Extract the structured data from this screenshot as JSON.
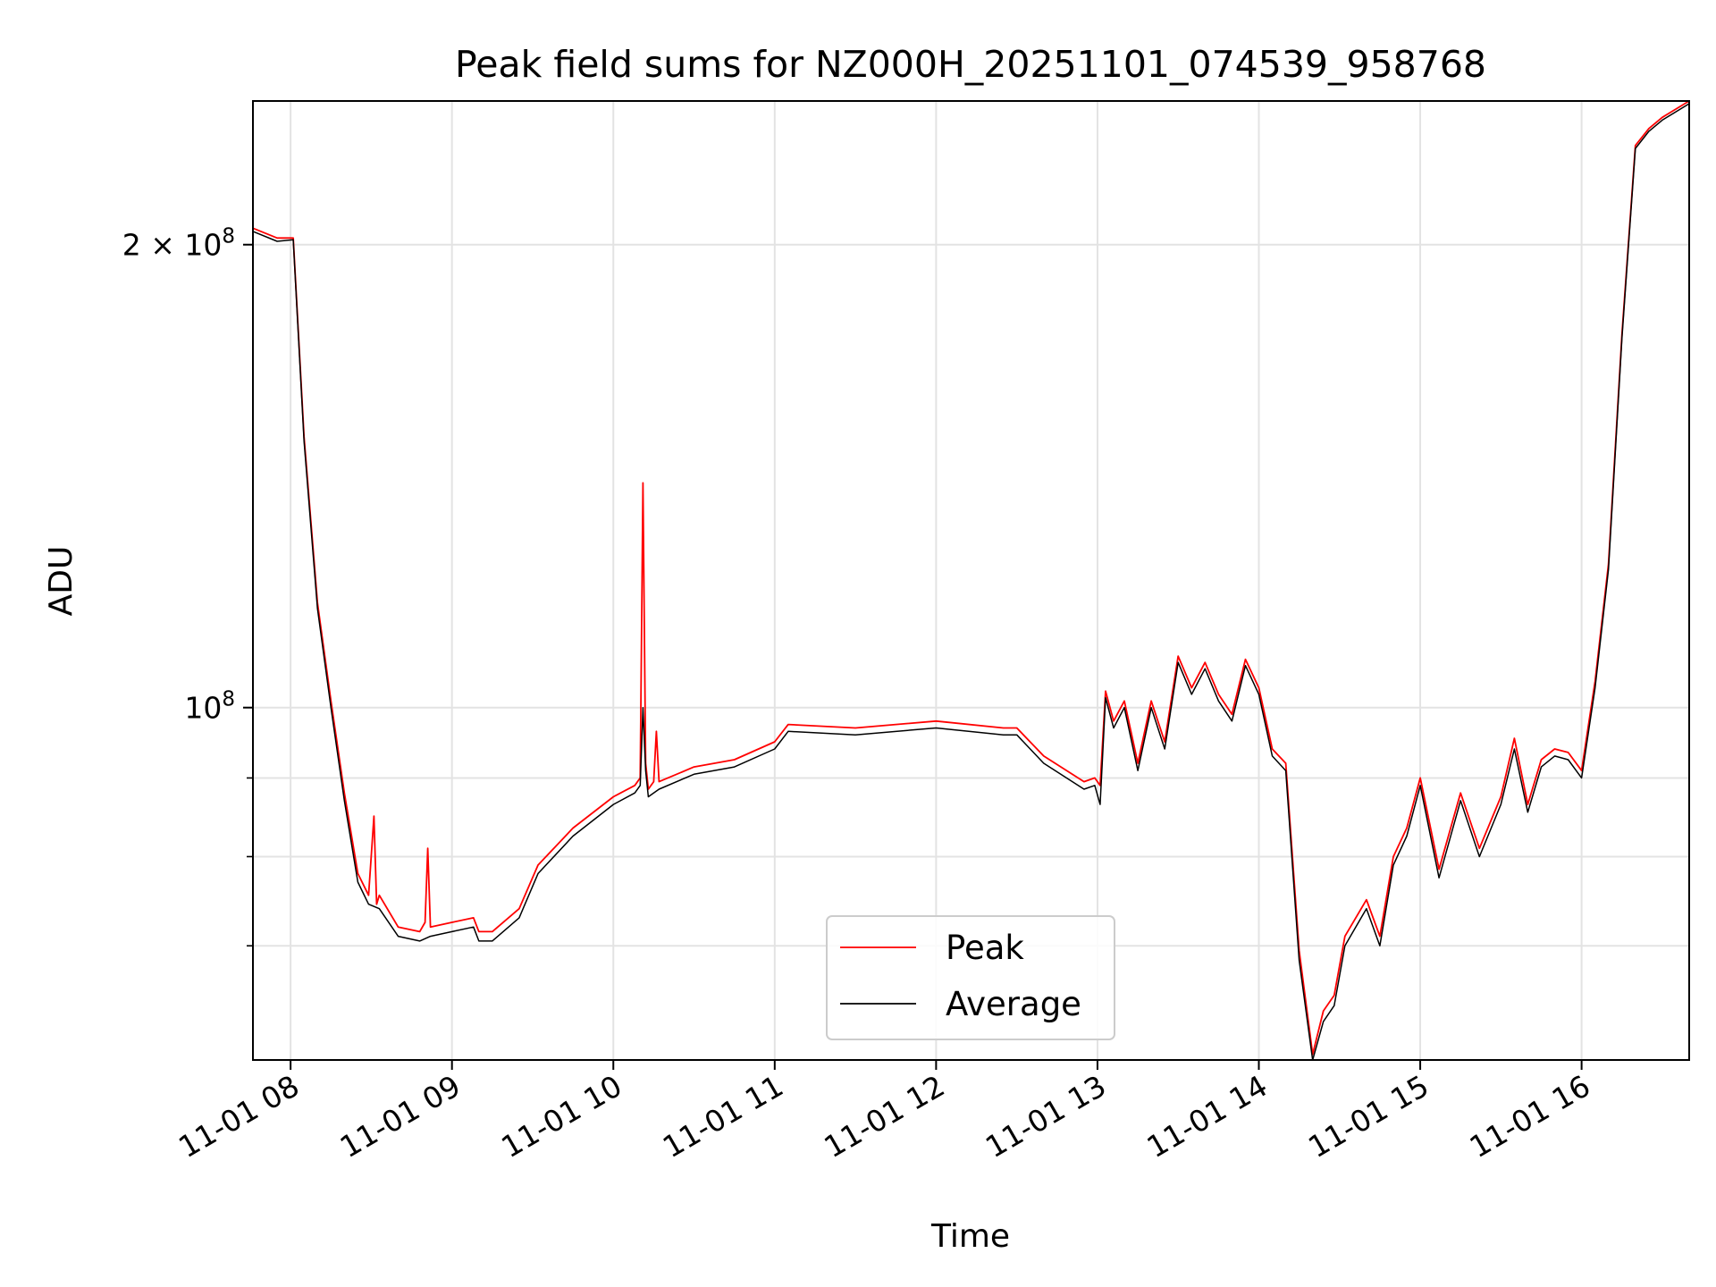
{
  "chart_data": {
    "type": "line",
    "title": "Peak field sums for NZ000H_20251101_074539_958768",
    "xlabel": "Time",
    "ylabel": "ADU",
    "y_scale": "log",
    "x_type": "time",
    "xlim": [
      "2025-11-01 07:46",
      "2025-11-01 16:40"
    ],
    "ylim": [
      59000000,
      248000000
    ],
    "x_ticks": [
      {
        "value": "2025-11-01 08:00",
        "label": "11-01 08"
      },
      {
        "value": "2025-11-01 09:00",
        "label": "11-01 09"
      },
      {
        "value": "2025-11-01 10:00",
        "label": "11-01 10"
      },
      {
        "value": "2025-11-01 11:00",
        "label": "11-01 11"
      },
      {
        "value": "2025-11-01 12:00",
        "label": "11-01 12"
      },
      {
        "value": "2025-11-01 13:00",
        "label": "11-01 13"
      },
      {
        "value": "2025-11-01 14:00",
        "label": "11-01 14"
      },
      {
        "value": "2025-11-01 15:00",
        "label": "11-01 15"
      },
      {
        "value": "2025-11-01 16:00",
        "label": "11-01 16"
      }
    ],
    "y_ticks": [
      {
        "value": 100000000,
        "label_base": "10",
        "label_exp": "8",
        "label_coef": ""
      },
      {
        "value": 200000000,
        "label_base": "10",
        "label_exp": "8",
        "label_coef": "2 × "
      }
    ],
    "y_minor_ticks": [
      70000000,
      80000000,
      90000000
    ],
    "grid": true,
    "legend": {
      "position": "lower center",
      "entries": [
        "Peak",
        "Average"
      ]
    },
    "series": [
      {
        "name": "Peak",
        "color": "#ff0000",
        "x": [
          "2025-11-01 07:46",
          "2025-11-01 07:55",
          "2025-11-01 08:01",
          "2025-11-01 08:05",
          "2025-11-01 08:10",
          "2025-11-01 08:15",
          "2025-11-01 08:20",
          "2025-11-01 08:25",
          "2025-11-01 08:29",
          "2025-11-01 08:31",
          "2025-11-01 08:32",
          "2025-11-01 08:33",
          "2025-11-01 08:40",
          "2025-11-01 08:48",
          "2025-11-01 08:50",
          "2025-11-01 08:51",
          "2025-11-01 08:52",
          "2025-11-01 09:00",
          "2025-11-01 09:08",
          "2025-11-01 09:10",
          "2025-11-01 09:15",
          "2025-11-01 09:25",
          "2025-11-01 09:32",
          "2025-11-01 09:45",
          "2025-11-01 10:00",
          "2025-11-01 10:08",
          "2025-11-01 10:10",
          "2025-11-01 10:11",
          "2025-11-01 10:12",
          "2025-11-01 10:13",
          "2025-11-01 10:15",
          "2025-11-01 10:16",
          "2025-11-01 10:17",
          "2025-11-01 10:30",
          "2025-11-01 10:45",
          "2025-11-01 11:00",
          "2025-11-01 11:05",
          "2025-11-01 11:30",
          "2025-11-01 12:00",
          "2025-11-01 12:25",
          "2025-11-01 12:30",
          "2025-11-01 12:40",
          "2025-11-01 12:55",
          "2025-11-01 12:59",
          "2025-11-01 13:01",
          "2025-11-01 13:03",
          "2025-11-01 13:06",
          "2025-11-01 13:10",
          "2025-11-01 13:15",
          "2025-11-01 13:20",
          "2025-11-01 13:25",
          "2025-11-01 13:30",
          "2025-11-01 13:35",
          "2025-11-01 13:40",
          "2025-11-01 13:45",
          "2025-11-01 13:50",
          "2025-11-01 13:55",
          "2025-11-01 14:00",
          "2025-11-01 14:05",
          "2025-11-01 14:10",
          "2025-11-01 14:15",
          "2025-11-01 14:20",
          "2025-11-01 14:24",
          "2025-11-01 14:28",
          "2025-11-01 14:32",
          "2025-11-01 14:40",
          "2025-11-01 14:45",
          "2025-11-01 14:50",
          "2025-11-01 14:55",
          "2025-11-01 15:00",
          "2025-11-01 15:07",
          "2025-11-01 15:15",
          "2025-11-01 15:22",
          "2025-11-01 15:30",
          "2025-11-01 15:35",
          "2025-11-01 15:40",
          "2025-11-01 15:45",
          "2025-11-01 15:50",
          "2025-11-01 15:55",
          "2025-11-01 16:00",
          "2025-11-01 16:05",
          "2025-11-01 16:10",
          "2025-11-01 16:15",
          "2025-11-01 16:20",
          "2025-11-01 16:25",
          "2025-11-01 16:30",
          "2025-11-01 16:40"
        ],
        "y": [
          205000000,
          202000000,
          202000000,
          150000000,
          117000000,
          101000000,
          88000000,
          78000000,
          75500000,
          85000000,
          74500000,
          75500000,
          72000000,
          71500000,
          72500000,
          81000000,
          72000000,
          72500000,
          73000000,
          71500000,
          71500000,
          74000000,
          79000000,
          83500000,
          87500000,
          89000000,
          90000000,
          140000000,
          92000000,
          88500000,
          89500000,
          96500000,
          89500000,
          91500000,
          92500000,
          95000000,
          97500000,
          97000000,
          98000000,
          97000000,
          97000000,
          93000000,
          89500000,
          90000000,
          89000000,
          102500000,
          98000000,
          101000000,
          92000000,
          101000000,
          95000000,
          108000000,
          103000000,
          107000000,
          102000000,
          99000000,
          107500000,
          103000000,
          94000000,
          92000000,
          69500000,
          59500000,
          63500000,
          65000000,
          71000000,
          75000000,
          71000000,
          80000000,
          83500000,
          90000000,
          78500000,
          88000000,
          81000000,
          87500000,
          95500000,
          86500000,
          92500000,
          94000000,
          93500000,
          91000000,
          104000000,
          124000000,
          175000000,
          232000000,
          238000000,
          242000000,
          248000000
        ]
      },
      {
        "name": "Average",
        "color": "#000000",
        "x": [
          "2025-11-01 07:46",
          "2025-11-01 07:55",
          "2025-11-01 08:01",
          "2025-11-01 08:05",
          "2025-11-01 08:10",
          "2025-11-01 08:15",
          "2025-11-01 08:20",
          "2025-11-01 08:25",
          "2025-11-01 08:29",
          "2025-11-01 08:33",
          "2025-11-01 08:40",
          "2025-11-01 08:48",
          "2025-11-01 08:52",
          "2025-11-01 09:00",
          "2025-11-01 09:08",
          "2025-11-01 09:10",
          "2025-11-01 09:15",
          "2025-11-01 09:25",
          "2025-11-01 09:32",
          "2025-11-01 09:45",
          "2025-11-01 10:00",
          "2025-11-01 10:08",
          "2025-11-01 10:10",
          "2025-11-01 10:11",
          "2025-11-01 10:12",
          "2025-11-01 10:13",
          "2025-11-01 10:17",
          "2025-11-01 10:30",
          "2025-11-01 10:45",
          "2025-11-01 11:00",
          "2025-11-01 11:05",
          "2025-11-01 11:30",
          "2025-11-01 12:00",
          "2025-11-01 12:25",
          "2025-11-01 12:30",
          "2025-11-01 12:40",
          "2025-11-01 12:55",
          "2025-11-01 12:59",
          "2025-11-01 13:01",
          "2025-11-01 13:03",
          "2025-11-01 13:06",
          "2025-11-01 13:10",
          "2025-11-01 13:15",
          "2025-11-01 13:20",
          "2025-11-01 13:25",
          "2025-11-01 13:30",
          "2025-11-01 13:35",
          "2025-11-01 13:40",
          "2025-11-01 13:45",
          "2025-11-01 13:50",
          "2025-11-01 13:55",
          "2025-11-01 14:00",
          "2025-11-01 14:05",
          "2025-11-01 14:10",
          "2025-11-01 14:15",
          "2025-11-01 14:20",
          "2025-11-01 14:24",
          "2025-11-01 14:28",
          "2025-11-01 14:32",
          "2025-11-01 14:40",
          "2025-11-01 14:45",
          "2025-11-01 14:50",
          "2025-11-01 14:55",
          "2025-11-01 15:00",
          "2025-11-01 15:07",
          "2025-11-01 15:15",
          "2025-11-01 15:22",
          "2025-11-01 15:30",
          "2025-11-01 15:35",
          "2025-11-01 15:40",
          "2025-11-01 15:45",
          "2025-11-01 15:50",
          "2025-11-01 15:55",
          "2025-11-01 16:00",
          "2025-11-01 16:05",
          "2025-11-01 16:10",
          "2025-11-01 16:15",
          "2025-11-01 16:20",
          "2025-11-01 16:25",
          "2025-11-01 16:30",
          "2025-11-01 16:40"
        ],
        "y": [
          204000000,
          201000000,
          201500000,
          149000000,
          116000000,
          100000000,
          87000000,
          77000000,
          74500000,
          74000000,
          71000000,
          70500000,
          71000000,
          71500000,
          72000000,
          70500000,
          70500000,
          73000000,
          78000000,
          82500000,
          86500000,
          88000000,
          89000000,
          100000000,
          91000000,
          87500000,
          88500000,
          90500000,
          91500000,
          94000000,
          96500000,
          96000000,
          97000000,
          96000000,
          96000000,
          92000000,
          88500000,
          89000000,
          86500000,
          101500000,
          97000000,
          100000000,
          91000000,
          100000000,
          94000000,
          107000000,
          102000000,
          106000000,
          101000000,
          98000000,
          106500000,
          102000000,
          93000000,
          91000000,
          68500000,
          59000000,
          62500000,
          64000000,
          70000000,
          74000000,
          70000000,
          79000000,
          82500000,
          89000000,
          77500000,
          87000000,
          80000000,
          86500000,
          94000000,
          85500000,
          91500000,
          93000000,
          92500000,
          90000000,
          103000000,
          123000000,
          174000000,
          231000000,
          237000000,
          241000000,
          247000000
        ]
      }
    ]
  }
}
